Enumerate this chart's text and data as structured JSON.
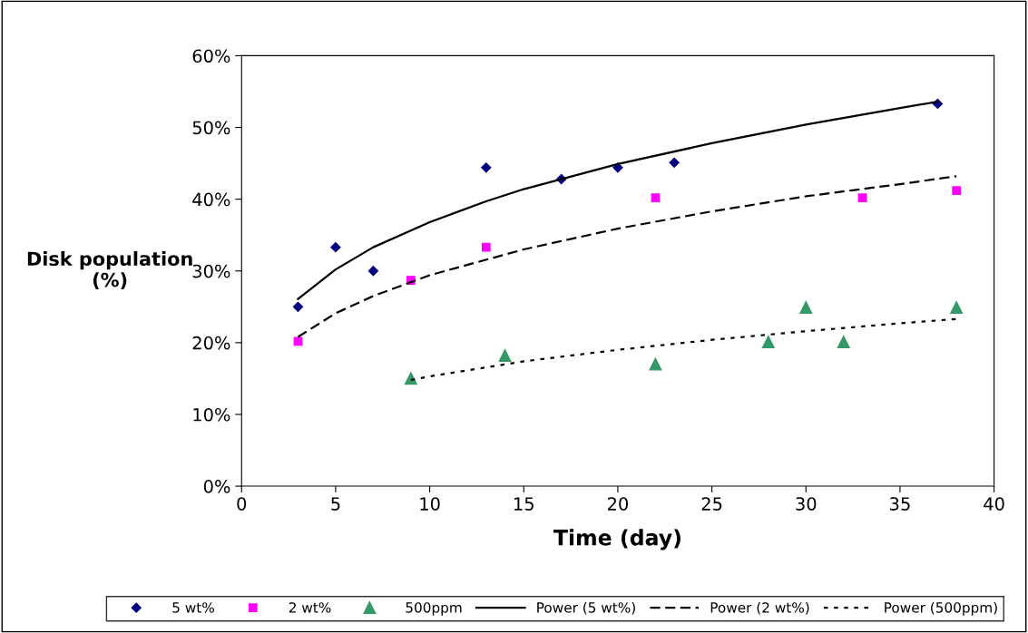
{
  "chart_data": {
    "type": "scatter",
    "xlabel": "Time (day)",
    "ylabel": "Disk population\n(%)",
    "xlim": [
      0,
      40
    ],
    "xticks": [
      0,
      5,
      10,
      15,
      20,
      25,
      30,
      35,
      40
    ],
    "ylim": [
      0,
      60
    ],
    "yticks": [
      {
        "value": 0,
        "label": "0%"
      },
      {
        "value": 10,
        "label": "10%"
      },
      {
        "value": 20,
        "label": "20%"
      },
      {
        "value": 30,
        "label": "30%"
      },
      {
        "value": 40,
        "label": "40%"
      },
      {
        "value": 50,
        "label": "50%"
      },
      {
        "value": 60,
        "label": "60%"
      }
    ],
    "grid": false,
    "legend": "bottom",
    "series": [
      {
        "name": "5 wt%",
        "marker": "diamond",
        "color": "#000080",
        "x": [
          3,
          5,
          7,
          13,
          17,
          20,
          23,
          37
        ],
        "values": [
          25.0,
          33.3,
          30.0,
          44.4,
          42.8,
          44.4,
          45.1,
          53.3
        ]
      },
      {
        "name": "2 wt%",
        "marker": "square",
        "color": "#ff00ff",
        "x": [
          3,
          9,
          13,
          22,
          33,
          38
        ],
        "values": [
          20.2,
          28.7,
          33.3,
          40.2,
          40.2,
          41.2
        ]
      },
      {
        "name": "500ppm",
        "marker": "triangle",
        "color": "#339966",
        "x": [
          9,
          14,
          22,
          28,
          30,
          32,
          38
        ],
        "values": [
          15.0,
          18.2,
          17.0,
          20.1,
          24.9,
          20.1,
          24.9
        ]
      },
      {
        "name": "Power (5 wt%)",
        "type": "line",
        "line_style": "solid",
        "color": "#000000",
        "x": [
          3,
          5,
          7,
          10,
          13,
          15,
          20,
          25,
          30,
          35,
          37
        ],
        "values": [
          26.1,
          30.2,
          33.3,
          36.8,
          39.7,
          41.4,
          44.9,
          47.8,
          50.4,
          52.7,
          53.6
        ]
      },
      {
        "name": "Power (2 wt%)",
        "type": "line",
        "line_style": "dashed",
        "color": "#000000",
        "x": [
          3,
          5,
          7,
          10,
          15,
          20,
          25,
          30,
          35,
          38
        ],
        "values": [
          20.8,
          24.1,
          26.5,
          29.4,
          33.0,
          35.9,
          38.3,
          40.4,
          42.1,
          43.2
        ]
      },
      {
        "name": "Power (500ppm)",
        "type": "line",
        "line_style": "dotted",
        "color": "#000000",
        "x": [
          9,
          10,
          15,
          20,
          25,
          30,
          35,
          38
        ],
        "values": [
          14.8,
          15.3,
          17.4,
          19.0,
          20.4,
          21.6,
          22.7,
          23.3
        ]
      }
    ]
  }
}
